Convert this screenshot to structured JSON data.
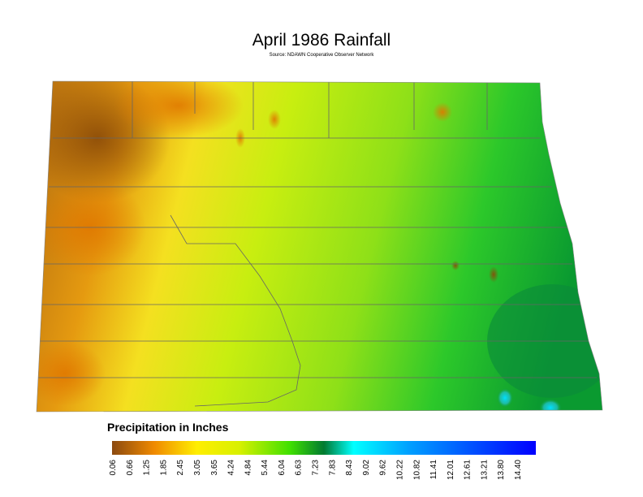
{
  "header": {
    "title": "April 1986 Rainfall",
    "source": "Source: NDAWN Cooperative Observer Network"
  },
  "legend": {
    "title": "Precipitation in Inches",
    "labels": [
      "0.06",
      "0.66",
      "1.25",
      "1.85",
      "2.45",
      "3.05",
      "3.65",
      "4.24",
      "4.84",
      "5.44",
      "6.04",
      "6.63",
      "7.23",
      "7.83",
      "8.43",
      "9.02",
      "9.62",
      "10.22",
      "10.82",
      "11.41",
      "12.01",
      "12.61",
      "13.21",
      "13.80",
      "14.40"
    ]
  }
}
